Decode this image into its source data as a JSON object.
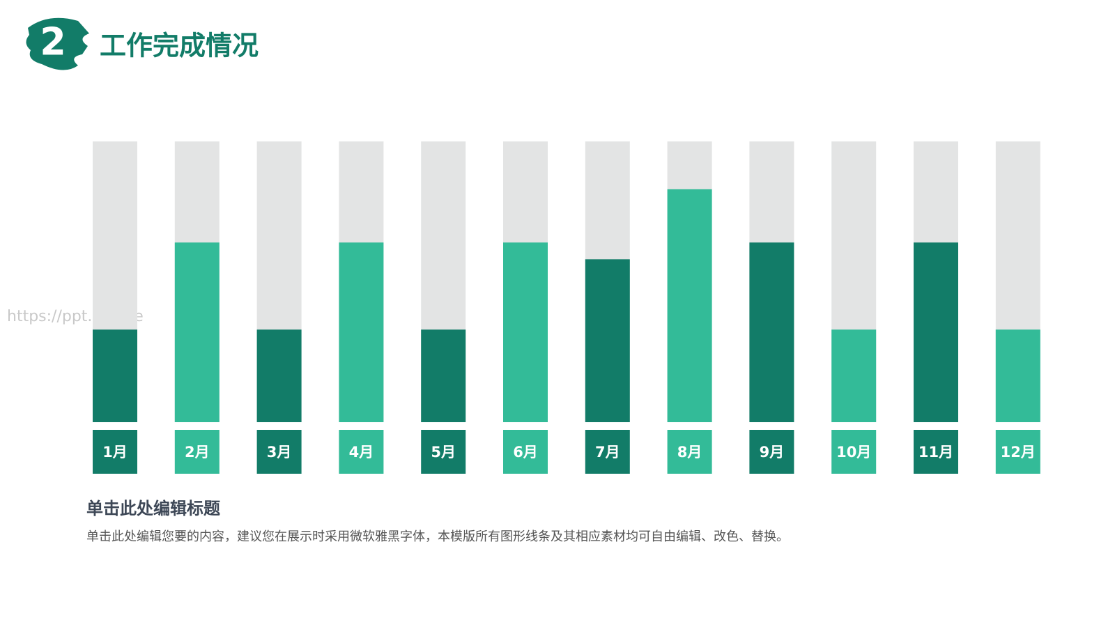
{
  "section_number": "2",
  "watermark": "https://ppt.pkll.de",
  "heading": "单击此处编辑标题",
  "body": "单击此处编辑您要的内容，建议您在展示时采用微软雅黑字体，本模版所有图形线条及其相应素材均可自由编辑、改色、替换。",
  "chart_data": {
    "type": "bar",
    "title": "工作完成情况",
    "categories": [
      "1月",
      "2月",
      "3月",
      "4月",
      "5月",
      "6月",
      "7月",
      "8月",
      "9月",
      "10月",
      "11月",
      "12月"
    ],
    "values": [
      33,
      64,
      33,
      64,
      33,
      64,
      58,
      83,
      64,
      33,
      64,
      33
    ],
    "colors": [
      "#127c68",
      "#33bb98",
      "#127c68",
      "#33bb98",
      "#127c68",
      "#33bb98",
      "#127c68",
      "#33bb98",
      "#127c68",
      "#33bb98",
      "#127c68",
      "#33bb98"
    ],
    "track_color": "#e3e4e4",
    "ylim": [
      0,
      100
    ]
  }
}
